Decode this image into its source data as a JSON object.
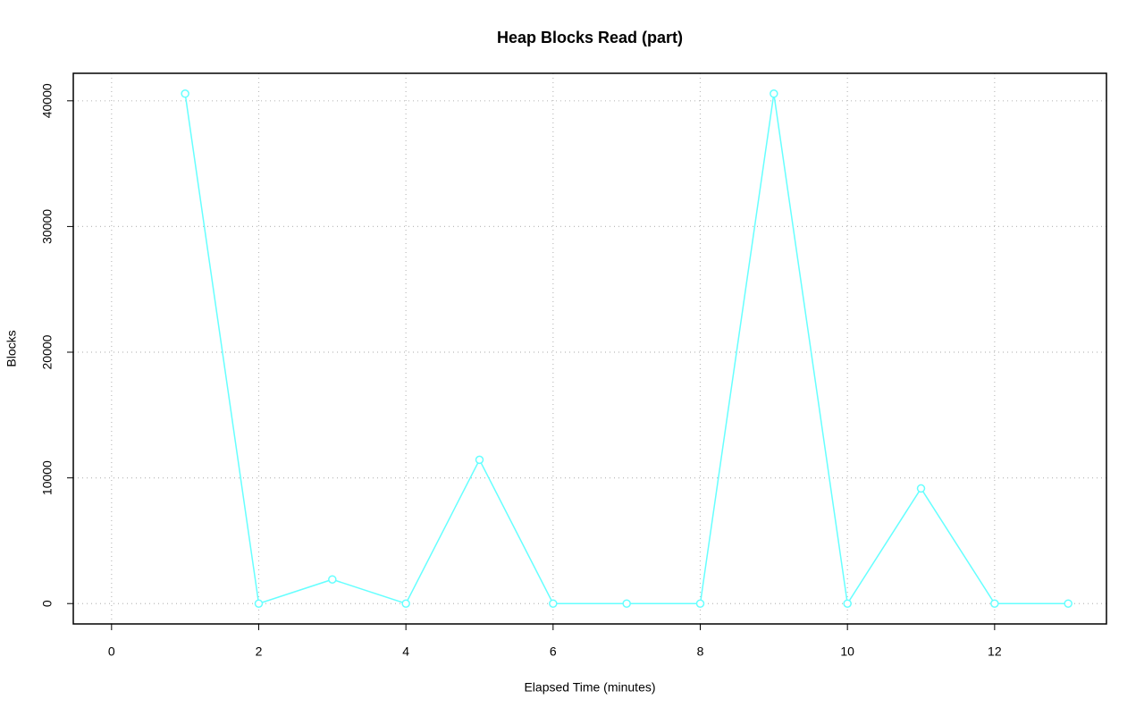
{
  "chart_data": {
    "type": "line",
    "title": "Heap Blocks Read (part)",
    "x_label": "Elapsed Time (minutes)",
    "y_label": "Blocks",
    "x": [
      1,
      2,
      3,
      4,
      5,
      6,
      7,
      8,
      9,
      10,
      11,
      12,
      13
    ],
    "series": [
      {
        "color": "#66ffff",
        "values": [
          40570,
          0,
          1920,
          0,
          11440,
          0,
          0,
          0,
          40570,
          0,
          9160,
          0,
          0
        ]
      }
    ],
    "xlim": [
      -0.52,
      13.52
    ],
    "xticks": [
      0,
      2,
      4,
      6,
      8,
      10,
      12
    ],
    "ylim": [
      -1620,
      42190
    ],
    "yticks": [
      0,
      10000,
      20000,
      30000,
      40000
    ],
    "grid": true,
    "markers": true
  }
}
